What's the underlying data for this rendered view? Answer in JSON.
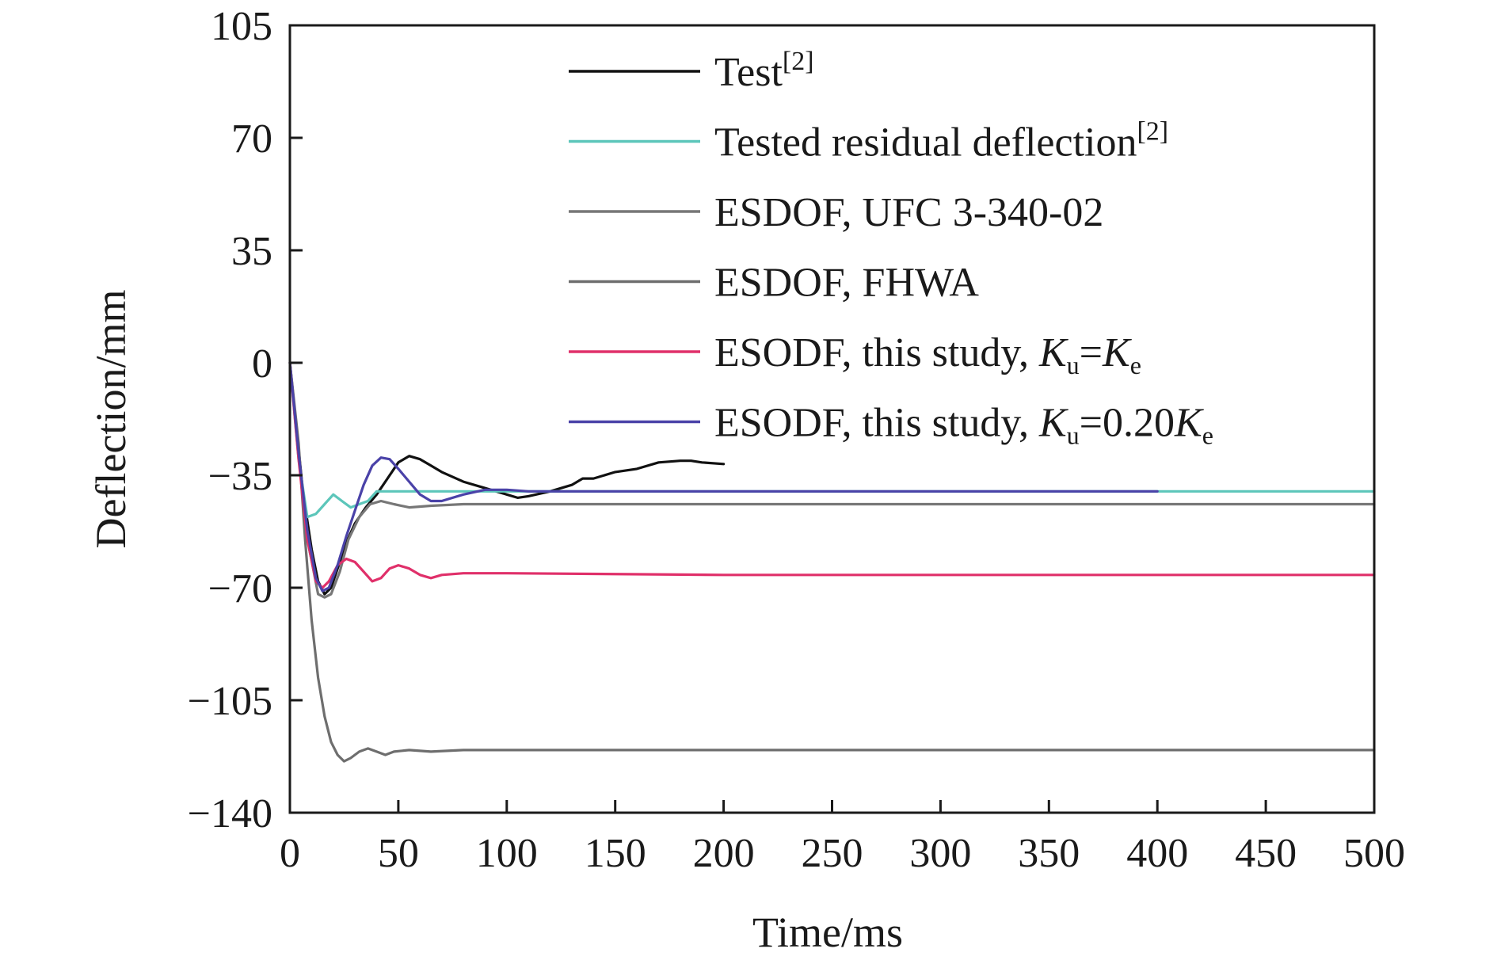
{
  "chart_data": {
    "type": "line",
    "xlabel": "Time/ms",
    "ylabel": "Deflection/mm",
    "xlim": [
      0,
      500
    ],
    "ylim": [
      -140,
      105
    ],
    "xticks": [
      0,
      50,
      100,
      150,
      200,
      250,
      300,
      350,
      400,
      450,
      500
    ],
    "yticks": [
      105,
      70,
      35,
      0,
      -35,
      -70,
      -105,
      -140
    ],
    "xtick_labels": [
      "0",
      "50",
      "100",
      "150",
      "200",
      "250",
      "300",
      "350",
      "400",
      "450",
      "500"
    ],
    "ytick_labels": [
      "105",
      "70",
      "35",
      "0",
      "−35",
      "−70",
      "−105",
      "−140"
    ],
    "grid": false,
    "legend_position": "top-right",
    "series": [
      {
        "id": "test",
        "label_parts": [
          {
            "t": "Test"
          },
          {
            "t": "[2]",
            "s": "sup"
          }
        ],
        "color": "#111111",
        "points": [
          [
            0,
            0
          ],
          [
            3,
            -20
          ],
          [
            6,
            -40
          ],
          [
            10,
            -58
          ],
          [
            13,
            -68
          ],
          [
            16,
            -72
          ],
          [
            19,
            -70
          ],
          [
            22,
            -64
          ],
          [
            26,
            -56
          ],
          [
            30,
            -50
          ],
          [
            35,
            -45
          ],
          [
            40,
            -41
          ],
          [
            45,
            -36
          ],
          [
            50,
            -31
          ],
          [
            55,
            -29
          ],
          [
            60,
            -30
          ],
          [
            65,
            -32
          ],
          [
            70,
            -34
          ],
          [
            80,
            -37
          ],
          [
            90,
            -39
          ],
          [
            100,
            -41
          ],
          [
            105,
            -42
          ],
          [
            110,
            -41.5
          ],
          [
            120,
            -40
          ],
          [
            130,
            -38
          ],
          [
            135,
            -36
          ],
          [
            140,
            -36
          ],
          [
            150,
            -34
          ],
          [
            160,
            -33
          ],
          [
            170,
            -31
          ],
          [
            180,
            -30.5
          ],
          [
            185,
            -30.5
          ],
          [
            190,
            -31
          ],
          [
            200,
            -31.5
          ]
        ]
      },
      {
        "id": "tested-residual",
        "label_parts": [
          {
            "t": "Tested residual deflection"
          },
          {
            "t": "[2]",
            "s": "sup"
          }
        ],
        "color": "#5cc6ba",
        "points": [
          [
            0,
            0
          ],
          [
            4,
            -30
          ],
          [
            8,
            -48
          ],
          [
            12,
            -47
          ],
          [
            16,
            -44
          ],
          [
            20,
            -41
          ],
          [
            24,
            -43
          ],
          [
            28,
            -45
          ],
          [
            32,
            -44
          ],
          [
            36,
            -43
          ],
          [
            40,
            -40
          ],
          [
            400,
            -40
          ],
          [
            500,
            -40
          ]
        ]
      },
      {
        "id": "esdof-ufc",
        "label_parts": [
          {
            "t": "ESDOF, UFC 3-340-02"
          }
        ],
        "color": "#777777",
        "points": [
          [
            0,
            0
          ],
          [
            5,
            -35
          ],
          [
            9,
            -58
          ],
          [
            13,
            -72
          ],
          [
            16,
            -73
          ],
          [
            19,
            -72
          ],
          [
            23,
            -65
          ],
          [
            27,
            -55
          ],
          [
            32,
            -48
          ],
          [
            37,
            -44
          ],
          [
            42,
            -43
          ],
          [
            48,
            -44
          ],
          [
            55,
            -45
          ],
          [
            65,
            -44.5
          ],
          [
            80,
            -44
          ],
          [
            100,
            -44
          ],
          [
            200,
            -44
          ],
          [
            300,
            -44
          ],
          [
            400,
            -44
          ],
          [
            500,
            -44
          ]
        ]
      },
      {
        "id": "esdof-fhwa",
        "label_parts": [
          {
            "t": "ESDOF, FHWA"
          }
        ],
        "color": "#6e6e6e",
        "points": [
          [
            0,
            0
          ],
          [
            4,
            -25
          ],
          [
            7,
            -55
          ],
          [
            10,
            -80
          ],
          [
            13,
            -98
          ],
          [
            16,
            -110
          ],
          [
            19,
            -118
          ],
          [
            22,
            -122
          ],
          [
            25,
            -124
          ],
          [
            28,
            -123
          ],
          [
            32,
            -121
          ],
          [
            36,
            -120
          ],
          [
            40,
            -121
          ],
          [
            44,
            -122
          ],
          [
            48,
            -121
          ],
          [
            55,
            -120.5
          ],
          [
            65,
            -121
          ],
          [
            80,
            -120.5
          ],
          [
            100,
            -120.5
          ],
          [
            200,
            -120.5
          ],
          [
            300,
            -120.5
          ],
          [
            400,
            -120.5
          ],
          [
            500,
            -120.5
          ]
        ]
      },
      {
        "id": "esodf-ke",
        "label_parts": [
          {
            "t": "ESODF, this study, "
          },
          {
            "t": "K",
            "i": true
          },
          {
            "t": "u",
            "s": "sub"
          },
          {
            "t": "="
          },
          {
            "t": "K",
            "i": true
          },
          {
            "t": "e",
            "s": "sub"
          }
        ],
        "color": "#e0306a",
        "points": [
          [
            0,
            0
          ],
          [
            4,
            -30
          ],
          [
            8,
            -55
          ],
          [
            12,
            -68
          ],
          [
            15,
            -70
          ],
          [
            18,
            -68
          ],
          [
            22,
            -63
          ],
          [
            26,
            -61
          ],
          [
            30,
            -62
          ],
          [
            34,
            -65
          ],
          [
            38,
            -68
          ],
          [
            42,
            -67
          ],
          [
            46,
            -64
          ],
          [
            50,
            -63
          ],
          [
            55,
            -64
          ],
          [
            60,
            -66
          ],
          [
            65,
            -67
          ],
          [
            70,
            -66
          ],
          [
            80,
            -65.5
          ],
          [
            100,
            -65.5
          ],
          [
            200,
            -66
          ],
          [
            300,
            -66
          ],
          [
            400,
            -66
          ],
          [
            500,
            -66
          ]
        ]
      },
      {
        "id": "esodf-020ke",
        "label_parts": [
          {
            "t": "ESODF, this study, "
          },
          {
            "t": "K",
            "i": true
          },
          {
            "t": "u",
            "s": "sub"
          },
          {
            "t": "=0.20"
          },
          {
            "t": "K",
            "i": true
          },
          {
            "t": "e",
            "s": "sub"
          }
        ],
        "color": "#4a42a8",
        "points": [
          [
            0,
            0
          ],
          [
            4,
            -28
          ],
          [
            8,
            -52
          ],
          [
            12,
            -67
          ],
          [
            15,
            -71
          ],
          [
            18,
            -70
          ],
          [
            22,
            -63
          ],
          [
            26,
            -54
          ],
          [
            30,
            -46
          ],
          [
            34,
            -38
          ],
          [
            38,
            -32
          ],
          [
            42,
            -29.5
          ],
          [
            46,
            -30
          ],
          [
            50,
            -33
          ],
          [
            55,
            -37
          ],
          [
            60,
            -41
          ],
          [
            65,
            -43
          ],
          [
            70,
            -43
          ],
          [
            80,
            -41
          ],
          [
            90,
            -39.5
          ],
          [
            100,
            -39.5
          ],
          [
            110,
            -40
          ],
          [
            120,
            -40
          ],
          [
            200,
            -40
          ],
          [
            300,
            -40
          ],
          [
            400,
            -40
          ]
        ]
      }
    ]
  }
}
